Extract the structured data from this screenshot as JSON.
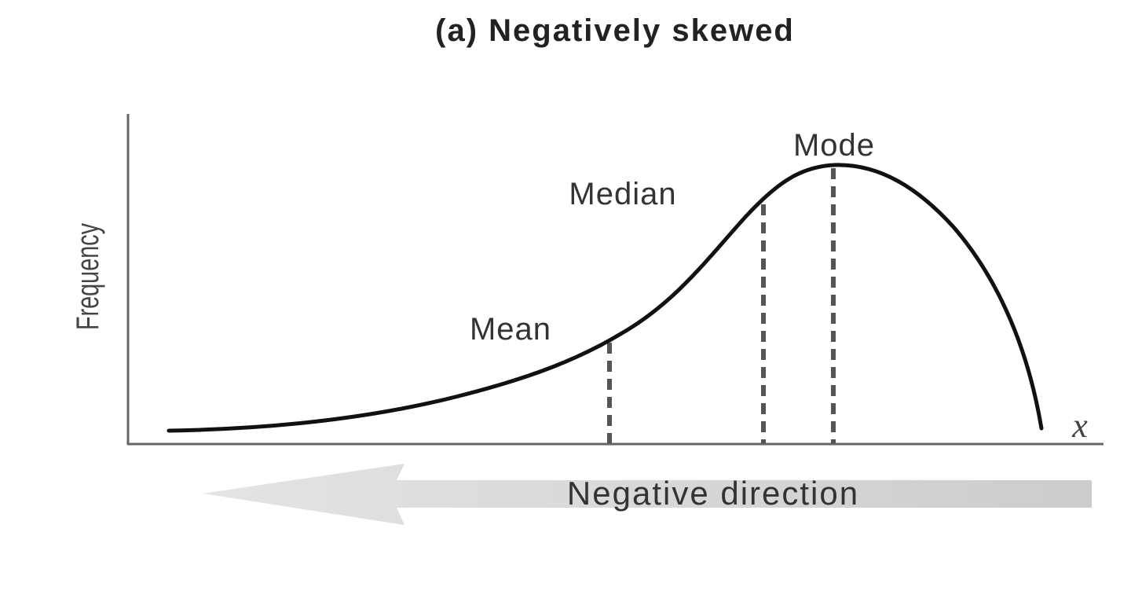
{
  "title": "(a) Negatively skewed",
  "y_axis_label": "Frequency",
  "x_axis_label": "x",
  "markers": {
    "mean": "Mean",
    "median": "Median",
    "mode": "Mode"
  },
  "direction_arrow": {
    "label": "Negative direction",
    "direction": "left"
  },
  "colors": {
    "curve": "#111111",
    "axes": "#666666",
    "dashed_lines": "#555555",
    "arrow": "#cccccc"
  }
}
